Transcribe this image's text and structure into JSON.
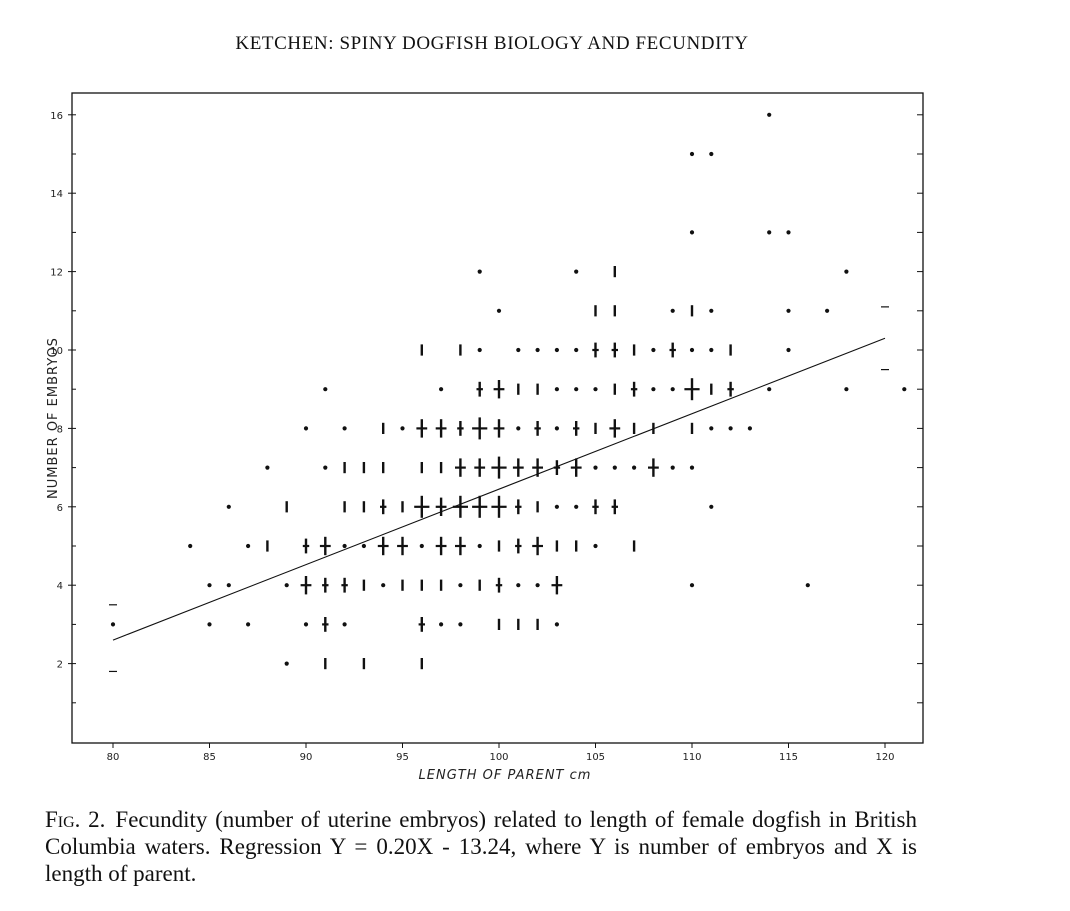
{
  "header": {
    "running_title": "KETCHEN: SPINY DOGFISH BIOLOGY AND FECUNDITY"
  },
  "caption": {
    "label": "Fig. 2.",
    "text": "Fecundity (number of uterine embryos) related to length of female dogfish in British Columbia waters. Regression Y = 0.20X - 13.24, where Y is number of embryos and X is length of parent."
  },
  "chart_data": {
    "type": "scatter",
    "title": "",
    "xlabel": "LENGTH OF PARENT cm",
    "ylabel": "NUMBER OF EMBRYOS",
    "xlim": [
      80,
      121
    ],
    "ylim": [
      0,
      16
    ],
    "xticks": [
      80,
      85,
      90,
      95,
      100,
      105,
      110,
      115,
      120
    ],
    "yticks": [
      2,
      4,
      6,
      8,
      10,
      12,
      14,
      16
    ],
    "grid": false,
    "legend": "none",
    "regression": {
      "label": "Y = 0.20X - 13.24",
      "x": [
        80,
        120
      ],
      "y": [
        2.6,
        10.3
      ]
    },
    "points": [
      {
        "x": 80,
        "y": 3,
        "n": 1
      },
      {
        "x": 84,
        "y": 5,
        "n": 1
      },
      {
        "x": 85,
        "y": 4,
        "n": 1
      },
      {
        "x": 85,
        "y": 3,
        "n": 1
      },
      {
        "x": 86,
        "y": 6,
        "n": 1
      },
      {
        "x": 86,
        "y": 4,
        "n": 1
      },
      {
        "x": 87,
        "y": 5,
        "n": 1
      },
      {
        "x": 87,
        "y": 3,
        "n": 1
      },
      {
        "x": 88,
        "y": 7,
        "n": 1
      },
      {
        "x": 88,
        "y": 5,
        "n": 2
      },
      {
        "x": 89,
        "y": 6,
        "n": 2
      },
      {
        "x": 89,
        "y": 4,
        "n": 1
      },
      {
        "x": 89,
        "y": 2,
        "n": 1
      },
      {
        "x": 90,
        "y": 8,
        "n": 1
      },
      {
        "x": 90,
        "y": 5,
        "n": 3
      },
      {
        "x": 90,
        "y": 4,
        "n": 4
      },
      {
        "x": 90,
        "y": 3,
        "n": 1
      },
      {
        "x": 91,
        "y": 9,
        "n": 1
      },
      {
        "x": 91,
        "y": 7,
        "n": 1
      },
      {
        "x": 91,
        "y": 5,
        "n": 4
      },
      {
        "x": 91,
        "y": 4,
        "n": 3
      },
      {
        "x": 91,
        "y": 3,
        "n": 3
      },
      {
        "x": 91,
        "y": 2,
        "n": 2
      },
      {
        "x": 92,
        "y": 8,
        "n": 1
      },
      {
        "x": 92,
        "y": 7,
        "n": 2
      },
      {
        "x": 92,
        "y": 6,
        "n": 2
      },
      {
        "x": 92,
        "y": 5,
        "n": 1
      },
      {
        "x": 92,
        "y": 4,
        "n": 3
      },
      {
        "x": 92,
        "y": 3,
        "n": 1
      },
      {
        "x": 93,
        "y": 7,
        "n": 2
      },
      {
        "x": 93,
        "y": 6,
        "n": 2
      },
      {
        "x": 93,
        "y": 5,
        "n": 1
      },
      {
        "x": 93,
        "y": 4,
        "n": 2
      },
      {
        "x": 93,
        "y": 2,
        "n": 2
      },
      {
        "x": 94,
        "y": 8,
        "n": 2
      },
      {
        "x": 94,
        "y": 7,
        "n": 2
      },
      {
        "x": 94,
        "y": 6,
        "n": 3
      },
      {
        "x": 94,
        "y": 5,
        "n": 4
      },
      {
        "x": 94,
        "y": 4,
        "n": 1
      },
      {
        "x": 95,
        "y": 8,
        "n": 1
      },
      {
        "x": 95,
        "y": 6,
        "n": 2
      },
      {
        "x": 95,
        "y": 5,
        "n": 4
      },
      {
        "x": 95,
        "y": 4,
        "n": 2
      },
      {
        "x": 96,
        "y": 10,
        "n": 2
      },
      {
        "x": 96,
        "y": 8,
        "n": 4
      },
      {
        "x": 96,
        "y": 7,
        "n": 2
      },
      {
        "x": 96,
        "y": 6,
        "n": 5
      },
      {
        "x": 96,
        "y": 5,
        "n": 1
      },
      {
        "x": 96,
        "y": 4,
        "n": 2
      },
      {
        "x": 96,
        "y": 3,
        "n": 3
      },
      {
        "x": 96,
        "y": 2,
        "n": 2
      },
      {
        "x": 97,
        "y": 9,
        "n": 1
      },
      {
        "x": 97,
        "y": 8,
        "n": 4
      },
      {
        "x": 97,
        "y": 7,
        "n": 2
      },
      {
        "x": 97,
        "y": 6,
        "n": 4
      },
      {
        "x": 97,
        "y": 5,
        "n": 4
      },
      {
        "x": 97,
        "y": 4,
        "n": 2
      },
      {
        "x": 97,
        "y": 3,
        "n": 1
      },
      {
        "x": 98,
        "y": 10,
        "n": 2
      },
      {
        "x": 98,
        "y": 8,
        "n": 3
      },
      {
        "x": 98,
        "y": 7,
        "n": 4
      },
      {
        "x": 98,
        "y": 6,
        "n": 5
      },
      {
        "x": 98,
        "y": 5,
        "n": 4
      },
      {
        "x": 98,
        "y": 4,
        "n": 1
      },
      {
        "x": 98,
        "y": 3,
        "n": 1
      },
      {
        "x": 99,
        "y": 12,
        "n": 1
      },
      {
        "x": 99,
        "y": 10,
        "n": 1
      },
      {
        "x": 99,
        "y": 9,
        "n": 3
      },
      {
        "x": 99,
        "y": 8,
        "n": 5
      },
      {
        "x": 99,
        "y": 7,
        "n": 4
      },
      {
        "x": 99,
        "y": 6,
        "n": 5
      },
      {
        "x": 99,
        "y": 5,
        "n": 1
      },
      {
        "x": 99,
        "y": 4,
        "n": 2
      },
      {
        "x": 100,
        "y": 11,
        "n": 1
      },
      {
        "x": 100,
        "y": 9,
        "n": 4
      },
      {
        "x": 100,
        "y": 8,
        "n": 4
      },
      {
        "x": 100,
        "y": 7,
        "n": 5
      },
      {
        "x": 100,
        "y": 6,
        "n": 5
      },
      {
        "x": 100,
        "y": 5,
        "n": 2
      },
      {
        "x": 100,
        "y": 4,
        "n": 3
      },
      {
        "x": 100,
        "y": 3,
        "n": 2
      },
      {
        "x": 101,
        "y": 10,
        "n": 1
      },
      {
        "x": 101,
        "y": 9,
        "n": 2
      },
      {
        "x": 101,
        "y": 8,
        "n": 1
      },
      {
        "x": 101,
        "y": 7,
        "n": 4
      },
      {
        "x": 101,
        "y": 6,
        "n": 3
      },
      {
        "x": 101,
        "y": 5,
        "n": 3
      },
      {
        "x": 101,
        "y": 4,
        "n": 1
      },
      {
        "x": 101,
        "y": 3,
        "n": 2
      },
      {
        "x": 102,
        "y": 10,
        "n": 1
      },
      {
        "x": 102,
        "y": 9,
        "n": 2
      },
      {
        "x": 102,
        "y": 8,
        "n": 3
      },
      {
        "x": 102,
        "y": 7,
        "n": 4
      },
      {
        "x": 102,
        "y": 6,
        "n": 2
      },
      {
        "x": 102,
        "y": 5,
        "n": 4
      },
      {
        "x": 102,
        "y": 4,
        "n": 1
      },
      {
        "x": 102,
        "y": 3,
        "n": 2
      },
      {
        "x": 103,
        "y": 10,
        "n": 1
      },
      {
        "x": 103,
        "y": 9,
        "n": 1
      },
      {
        "x": 103,
        "y": 8,
        "n": 1
      },
      {
        "x": 103,
        "y": 7,
        "n": 3
      },
      {
        "x": 103,
        "y": 6,
        "n": 1
      },
      {
        "x": 103,
        "y": 5,
        "n": 2
      },
      {
        "x": 103,
        "y": 4,
        "n": 4
      },
      {
        "x": 103,
        "y": 3,
        "n": 1
      },
      {
        "x": 104,
        "y": 12,
        "n": 1
      },
      {
        "x": 104,
        "y": 10,
        "n": 1
      },
      {
        "x": 104,
        "y": 9,
        "n": 1
      },
      {
        "x": 104,
        "y": 8,
        "n": 3
      },
      {
        "x": 104,
        "y": 7,
        "n": 4
      },
      {
        "x": 104,
        "y": 6,
        "n": 1
      },
      {
        "x": 104,
        "y": 5,
        "n": 2
      },
      {
        "x": 105,
        "y": 11,
        "n": 2
      },
      {
        "x": 105,
        "y": 10,
        "n": 3
      },
      {
        "x": 105,
        "y": 9,
        "n": 1
      },
      {
        "x": 105,
        "y": 8,
        "n": 2
      },
      {
        "x": 105,
        "y": 7,
        "n": 1
      },
      {
        "x": 105,
        "y": 6,
        "n": 3
      },
      {
        "x": 105,
        "y": 5,
        "n": 1
      },
      {
        "x": 106,
        "y": 12,
        "n": 2
      },
      {
        "x": 106,
        "y": 11,
        "n": 2
      },
      {
        "x": 106,
        "y": 10,
        "n": 3
      },
      {
        "x": 106,
        "y": 9,
        "n": 2
      },
      {
        "x": 106,
        "y": 8,
        "n": 4
      },
      {
        "x": 106,
        "y": 7,
        "n": 1
      },
      {
        "x": 106,
        "y": 6,
        "n": 3
      },
      {
        "x": 107,
        "y": 10,
        "n": 2
      },
      {
        "x": 107,
        "y": 9,
        "n": 3
      },
      {
        "x": 107,
        "y": 8,
        "n": 2
      },
      {
        "x": 107,
        "y": 7,
        "n": 1
      },
      {
        "x": 107,
        "y": 5,
        "n": 2
      },
      {
        "x": 108,
        "y": 10,
        "n": 1
      },
      {
        "x": 108,
        "y": 9,
        "n": 1
      },
      {
        "x": 108,
        "y": 8,
        "n": 2
      },
      {
        "x": 108,
        "y": 7,
        "n": 4
      },
      {
        "x": 109,
        "y": 11,
        "n": 1
      },
      {
        "x": 109,
        "y": 10,
        "n": 3
      },
      {
        "x": 109,
        "y": 9,
        "n": 1
      },
      {
        "x": 109,
        "y": 7,
        "n": 1
      },
      {
        "x": 110,
        "y": 15,
        "n": 1
      },
      {
        "x": 110,
        "y": 13,
        "n": 1
      },
      {
        "x": 110,
        "y": 11,
        "n": 2
      },
      {
        "x": 110,
        "y": 10,
        "n": 1
      },
      {
        "x": 110,
        "y": 9,
        "n": 5
      },
      {
        "x": 110,
        "y": 8,
        "n": 2
      },
      {
        "x": 110,
        "y": 7,
        "n": 1
      },
      {
        "x": 110,
        "y": 4,
        "n": 1
      },
      {
        "x": 111,
        "y": 15,
        "n": 1
      },
      {
        "x": 111,
        "y": 11,
        "n": 1
      },
      {
        "x": 111,
        "y": 10,
        "n": 1
      },
      {
        "x": 111,
        "y": 9,
        "n": 2
      },
      {
        "x": 111,
        "y": 8,
        "n": 1
      },
      {
        "x": 111,
        "y": 6,
        "n": 1
      },
      {
        "x": 112,
        "y": 10,
        "n": 2
      },
      {
        "x": 112,
        "y": 9,
        "n": 3
      },
      {
        "x": 112,
        "y": 8,
        "n": 1
      },
      {
        "x": 113,
        "y": 8,
        "n": 1
      },
      {
        "x": 114,
        "y": 16,
        "n": 1
      },
      {
        "x": 114,
        "y": 13,
        "n": 1
      },
      {
        "x": 114,
        "y": 9,
        "n": 1
      },
      {
        "x": 115,
        "y": 13,
        "n": 1
      },
      {
        "x": 115,
        "y": 11,
        "n": 1
      },
      {
        "x": 115,
        "y": 10,
        "n": 1
      },
      {
        "x": 116,
        "y": 4,
        "n": 1
      },
      {
        "x": 117,
        "y": 11,
        "n": 1
      },
      {
        "x": 118,
        "y": 12,
        "n": 1
      },
      {
        "x": 118,
        "y": 9,
        "n": 1
      },
      {
        "x": 121,
        "y": 9,
        "n": 1
      }
    ]
  }
}
